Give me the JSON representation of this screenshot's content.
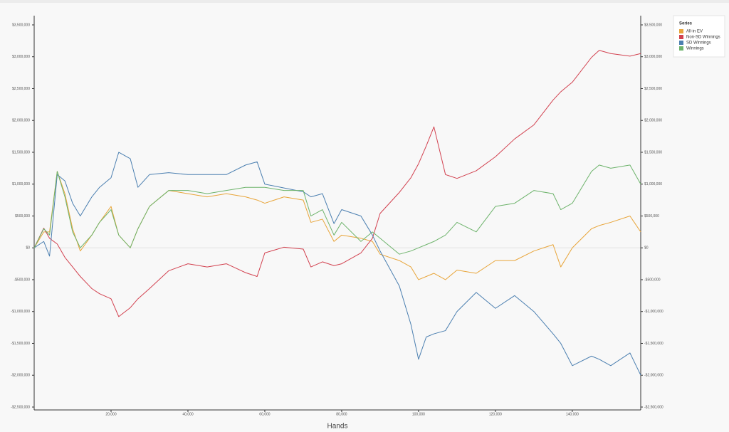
{
  "chart_data": {
    "type": "line",
    "x_label": "Hands",
    "legend_title": "Series",
    "legend": "top-right",
    "x": [
      0,
      2500,
      4000,
      6000,
      8000,
      10000,
      12000,
      15000,
      17000,
      20000,
      22000,
      25000,
      27000,
      30000,
      35000,
      40000,
      45000,
      50000,
      55000,
      58000,
      60000,
      65000,
      70000,
      72000,
      75000,
      78000,
      80000,
      85000,
      88000,
      90000,
      95000,
      98000,
      100000,
      102000,
      104000,
      107000,
      110000,
      115000,
      120000,
      125000,
      130000,
      135000,
      137000,
      140000,
      145000,
      147000,
      150000,
      155000,
      157800
    ],
    "series": [
      {
        "name": "All-in EV",
        "color": "#e8a53a",
        "values": [
          0,
          250000,
          250000,
          1200000,
          850000,
          300000,
          -50000,
          200000,
          400000,
          650000,
          200000,
          0,
          300000,
          650000,
          900000,
          850000,
          800000,
          850000,
          800000,
          750000,
          700000,
          800000,
          750000,
          400000,
          450000,
          100000,
          200000,
          150000,
          100000,
          -100000,
          -200000,
          -300000,
          -500000,
          -450000,
          -400000,
          -500000,
          -350000,
          -400000,
          -200000,
          -200000,
          -50000,
          50000,
          -300000,
          0,
          300000,
          350000,
          400000,
          500000,
          250000
        ]
      },
      {
        "name": "Non-SD Winnings",
        "color": "#d2414f",
        "values": [
          0,
          310000,
          150000,
          60000,
          -150000,
          -300000,
          -450000,
          -640000,
          -720000,
          -800000,
          -1080000,
          -940000,
          -800000,
          -640000,
          -360000,
          -250000,
          -300000,
          -250000,
          -390000,
          -450000,
          -80000,
          10000,
          -20000,
          -300000,
          -220000,
          -280000,
          -250000,
          -80000,
          150000,
          540000,
          870000,
          1100000,
          1320000,
          1600000,
          1900000,
          1150000,
          1090000,
          1210000,
          1430000,
          1710000,
          1930000,
          2320000,
          2450000,
          2600000,
          2990000,
          3100000,
          3050000,
          3010000,
          3050000
        ]
      },
      {
        "name": "SD Winnings",
        "color": "#4b7fb0",
        "values": [
          0,
          100000,
          -130000,
          1150000,
          1050000,
          700000,
          500000,
          800000,
          950000,
          1100000,
          1500000,
          1400000,
          950000,
          1150000,
          1180000,
          1150000,
          1150000,
          1150000,
          1300000,
          1350000,
          1000000,
          940000,
          880000,
          800000,
          850000,
          380000,
          600000,
          500000,
          200000,
          -50000,
          -600000,
          -1200000,
          -1750000,
          -1400000,
          -1350000,
          -1300000,
          -1000000,
          -700000,
          -950000,
          -750000,
          -1000000,
          -1350000,
          -1500000,
          -1850000,
          -1700000,
          -1750000,
          -1850000,
          -1650000,
          -2000000
        ]
      },
      {
        "name": "Winnings",
        "color": "#6db36b",
        "values": [
          0,
          300000,
          200000,
          1200000,
          800000,
          250000,
          0,
          200000,
          400000,
          600000,
          200000,
          0,
          300000,
          650000,
          900000,
          900000,
          850000,
          900000,
          950000,
          950000,
          950000,
          900000,
          900000,
          500000,
          600000,
          200000,
          400000,
          100000,
          250000,
          150000,
          -100000,
          -50000,
          0,
          50000,
          100000,
          200000,
          400000,
          250000,
          650000,
          700000,
          900000,
          850000,
          600000,
          700000,
          1200000,
          1300000,
          1250000,
          1300000,
          1000000
        ]
      }
    ],
    "xlim": [
      0,
      157800
    ],
    "xticks": [
      {
        "value": 20000,
        "label": "20,000"
      },
      {
        "value": 40000,
        "label": "40,000"
      },
      {
        "value": 60000,
        "label": "60,000"
      },
      {
        "value": 80000,
        "label": "80,000"
      },
      {
        "value": 100000,
        "label": "100,000"
      },
      {
        "value": 120000,
        "label": "120,000"
      },
      {
        "value": 140000,
        "label": "140,000"
      }
    ],
    "ylim": [
      -2545000,
      3645000
    ],
    "yticks": [
      {
        "value": 3500000,
        "label": "$3,500,000"
      },
      {
        "value": 3000000,
        "label": "$3,000,000"
      },
      {
        "value": 2500000,
        "label": "$2,500,000"
      },
      {
        "value": 2000000,
        "label": "$2,000,000"
      },
      {
        "value": 1500000,
        "label": "$1,500,000"
      },
      {
        "value": 1000000,
        "label": "$1,000,000"
      },
      {
        "value": 500000,
        "label": "$500,000"
      },
      {
        "value": 0,
        "label": "$0"
      },
      {
        "value": -500000,
        "label": "-$500,000"
      },
      {
        "value": -1000000,
        "label": "-$1,000,000"
      },
      {
        "value": -1500000,
        "label": "-$1,500,000"
      },
      {
        "value": -2000000,
        "label": "-$2,000,000"
      },
      {
        "value": -2500000,
        "label": "-$2,500,000"
      }
    ],
    "y2lim": [
      -2545000,
      3645000
    ],
    "y2ticks": [
      {
        "value": 3500000,
        "label": "$3,500,000"
      },
      {
        "value": 3000000,
        "label": "$3,000,000"
      },
      {
        "value": 2500000,
        "label": "$2,500,000"
      },
      {
        "value": 2000000,
        "label": "$2,000,000"
      },
      {
        "value": 1500000,
        "label": "$1,500,000"
      },
      {
        "value": 1000000,
        "label": "$1,000,000"
      },
      {
        "value": 500000,
        "label": "$500,000"
      },
      {
        "value": 0,
        "label": "$0"
      },
      {
        "value": -500000,
        "label": "-$500,000"
      },
      {
        "value": -1000000,
        "label": "-$1,000,000"
      },
      {
        "value": -1500000,
        "label": "-$1,500,000"
      },
      {
        "value": -2000000,
        "label": "-$2,000,000"
      },
      {
        "value": -2500000,
        "label": "-$2,500,000"
      }
    ]
  }
}
